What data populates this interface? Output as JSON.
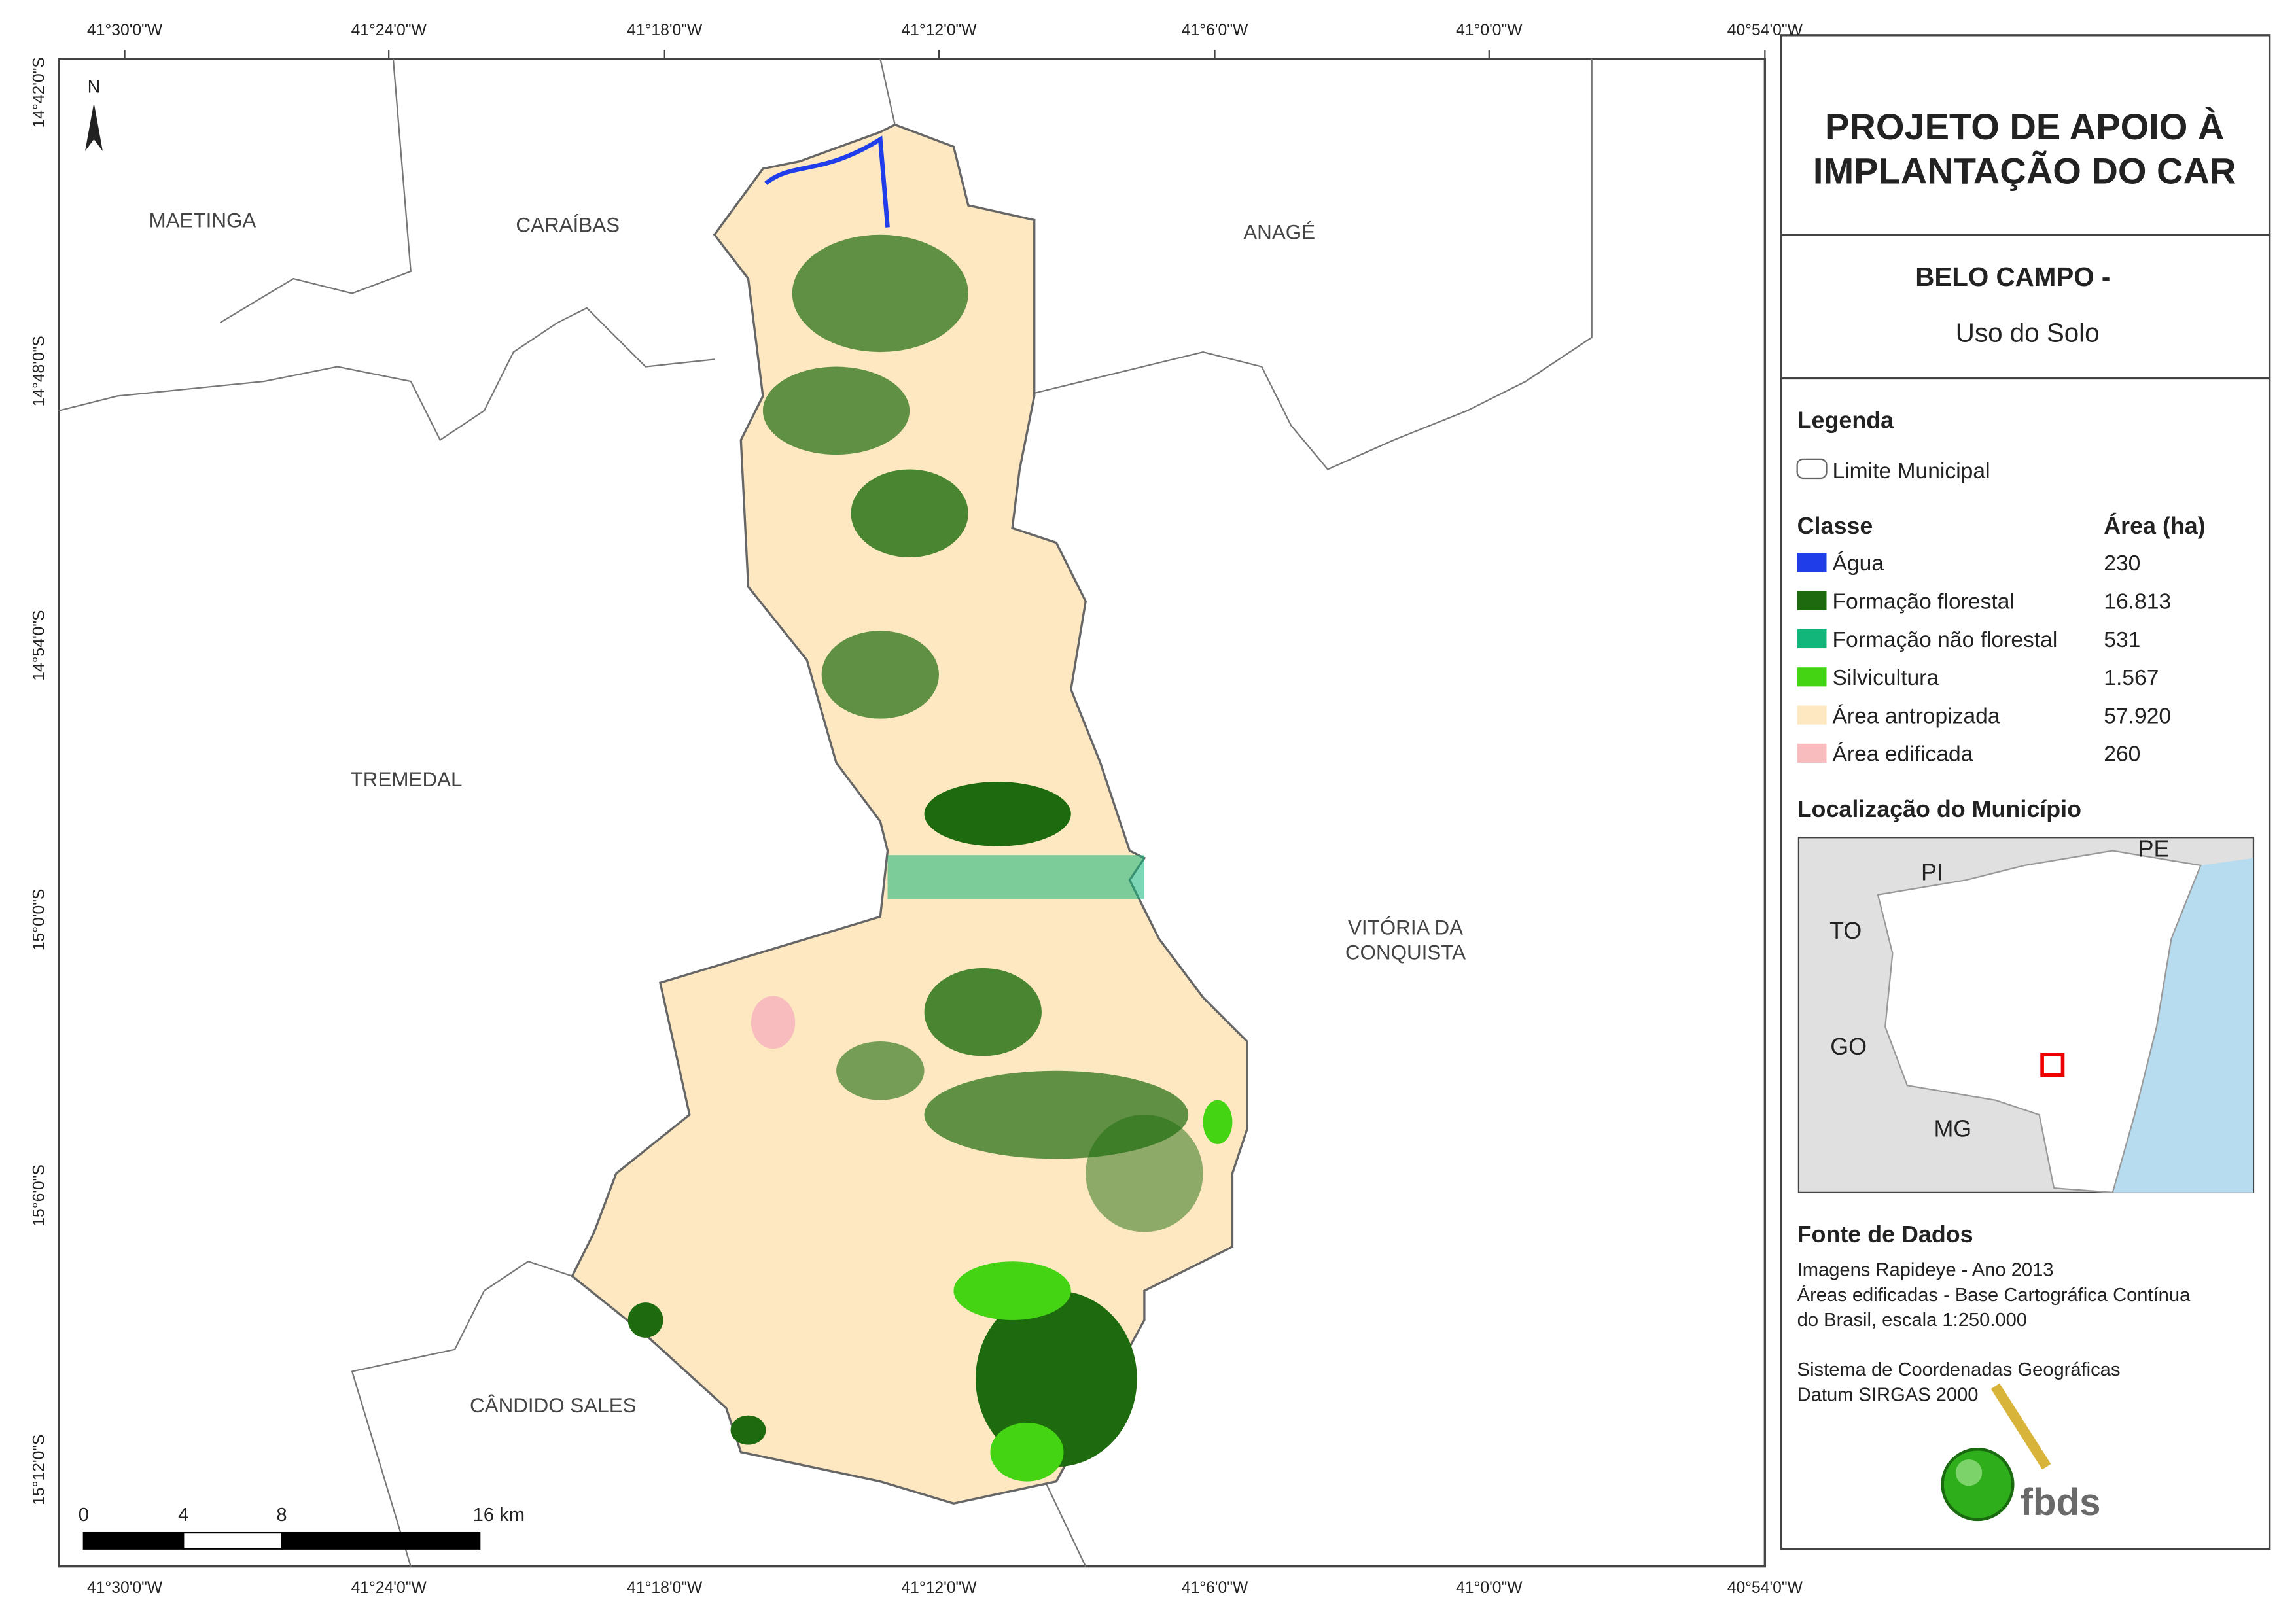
{
  "map": {
    "lon_labels": [
      "41°30'0\"W",
      "41°24'0\"W",
      "41°18'0\"W",
      "41°12'0\"W",
      "41°6'0\"W",
      "41°0'0\"W",
      "40°54'0\"W"
    ],
    "lat_labels": [
      "14°42'0\"S",
      "14°48'0\"S",
      "14°54'0\"S",
      "15°0'0\"S",
      "15°6'0\"S",
      "15°12'0\"S"
    ],
    "north": "N",
    "places": [
      "MAETINGA",
      "CARAÍBAS",
      "ANAGÉ",
      "TREMEDAL",
      "VITÓRIA DA",
      "CONQUISTA",
      "CÂNDIDO SALES"
    ],
    "scale_labels": [
      "0",
      "4",
      "8",
      "16 km"
    ]
  },
  "panel": {
    "title_lines": [
      "PROJETO DE APOIO À",
      "IMPLANTAÇÃO DO CAR"
    ],
    "municipality": "BELO CAMPO -",
    "subtitle": "Uso do Solo",
    "legend_title": "Legenda",
    "boundary_label": "Limite Municipal",
    "class_header": "Classe",
    "area_header": "Área (ha)",
    "classes": [
      {
        "name": "Água",
        "area": "230",
        "color": "#1f3de8"
      },
      {
        "name": "Formação florestal",
        "area": "16.813",
        "color": "#1d6b0e"
      },
      {
        "name": "Formação não florestal",
        "area": "531",
        "color": "#12b57a"
      },
      {
        "name": "Silvicultura",
        "area": "1.567",
        "color": "#44d414"
      },
      {
        "name": "Área antropizada",
        "area": "57.920",
        "color": "#fde8c2"
      },
      {
        "name": "Área edificada",
        "area": "260",
        "color": "#f8bcbf"
      }
    ],
    "location_title": "Localização do Município",
    "inset_labels": [
      "PI",
      "PE",
      "TO",
      "GO",
      "MG"
    ],
    "source_title": "Fonte de Dados",
    "source_lines": [
      "Imagens Rapideye - Ano 2013",
      "Áreas edificadas - Base Cartográfica Contínua",
      "do Brasil, escala 1:250.000"
    ],
    "crs_lines": [
      "Sistema de Coordenadas Geográficas",
      "Datum SIRGAS 2000"
    ],
    "logo": "fbds"
  }
}
